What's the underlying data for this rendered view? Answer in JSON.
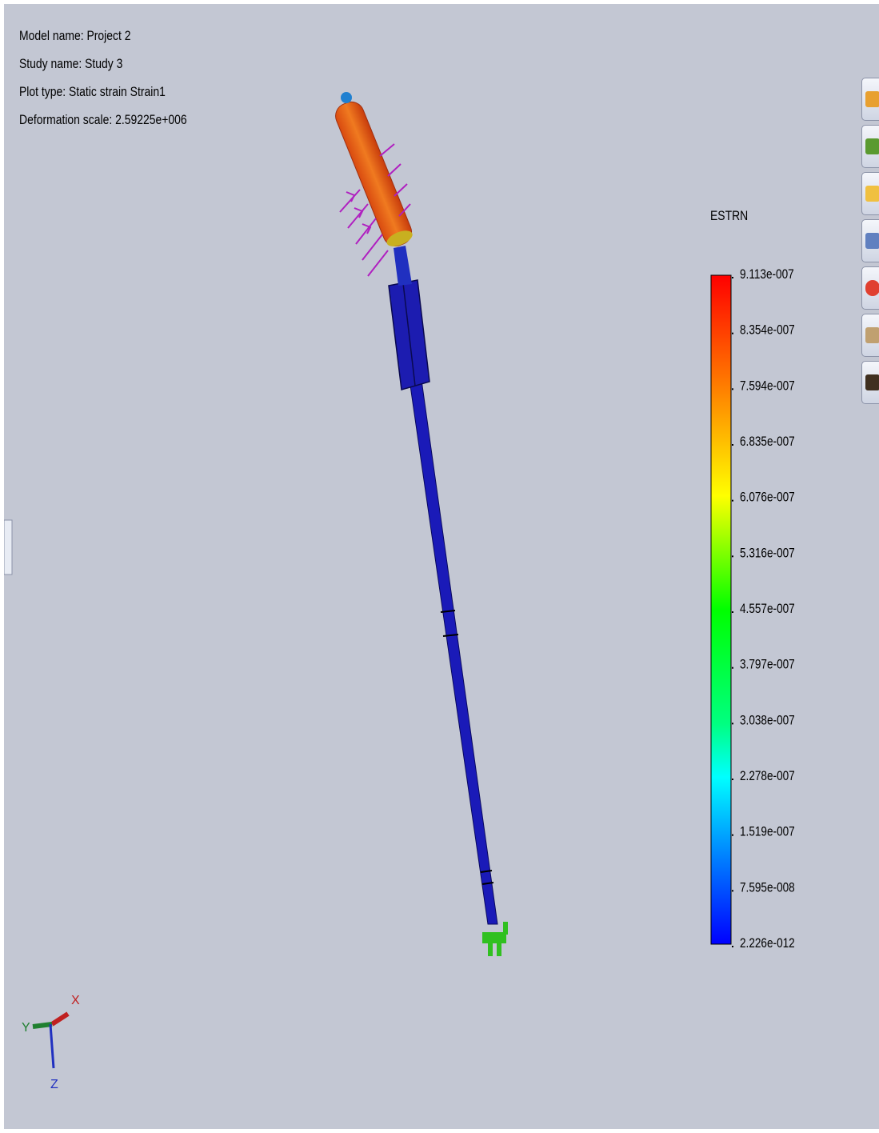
{
  "info": {
    "model_name": "Model name: Project 2",
    "study_name": "Study name: Study 3",
    "plot_type": "Plot type: Static strain Strain1",
    "deformation_scale": "Deformation scale: 2.59225e+006"
  },
  "legend": {
    "title": "ESTRN",
    "labels": [
      "9.113e-007",
      "8.354e-007",
      "7.594e-007",
      "6.835e-007",
      "6.076e-007",
      "5.316e-007",
      "4.557e-007",
      "3.797e-007",
      "3.038e-007",
      "2.278e-007",
      "1.519e-007",
      "7.595e-008",
      "2.226e-012"
    ]
  },
  "triad": {
    "x": "X",
    "y": "Y",
    "z": "Z"
  }
}
